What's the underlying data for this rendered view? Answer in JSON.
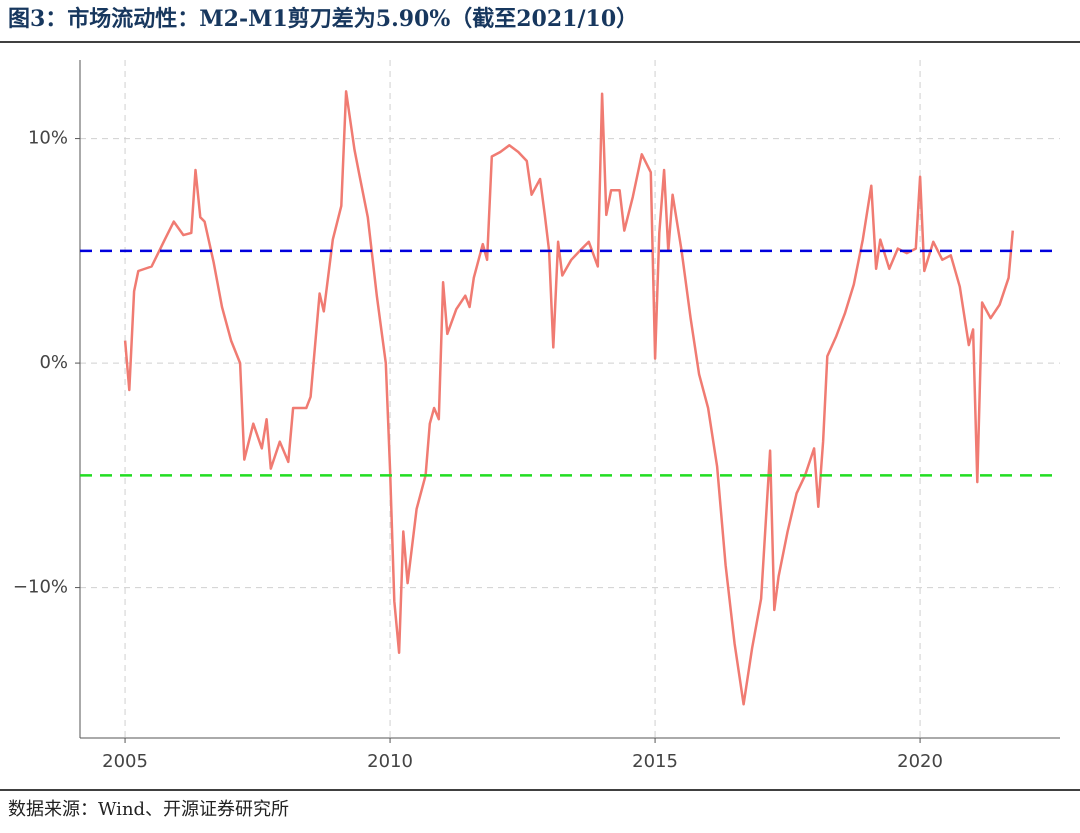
{
  "chart_data": {
    "type": "line",
    "title": "图3：市场流动性：M2-M1剪刀差为5.90%（截至2021/10）",
    "source": "数据来源：Wind、开源证券研究所",
    "xlim": [
      2004.15,
      2022.64
    ],
    "xticks": [
      2005,
      2010,
      2015,
      2020
    ],
    "ylim": [
      -16.7,
      13.5
    ],
    "yticks": [
      {
        "value": -10,
        "label": "−10%"
      },
      {
        "value": 0,
        "label": "0%"
      },
      {
        "value": 10,
        "label": "10%"
      }
    ],
    "grid": true,
    "hlines": [
      {
        "value": 5,
        "color": "#0000dd"
      },
      {
        "value": -5,
        "color": "#22dd22"
      }
    ],
    "series": [
      {
        "color": "#f07b72",
        "x": [
          2005.0,
          2005.08,
          2005.17,
          2005.25,
          2005.5,
          2005.75,
          2005.92,
          2006.1,
          2006.25,
          2006.33,
          2006.42,
          2006.5,
          2006.67,
          2006.83,
          2007.0,
          2007.17,
          2007.25,
          2007.42,
          2007.58,
          2007.67,
          2007.75,
          2007.92,
          2008.08,
          2008.17,
          2008.42,
          2008.5,
          2008.67,
          2008.75,
          2008.92,
          2009.08,
          2009.17,
          2009.33,
          2009.42,
          2009.58,
          2009.75,
          2009.92,
          2010.0,
          2010.08,
          2010.17,
          2010.25,
          2010.33,
          2010.5,
          2010.67,
          2010.75,
          2010.83,
          2010.92,
          2011.0,
          2011.08,
          2011.25,
          2011.42,
          2011.5,
          2011.58,
          2011.75,
          2011.83,
          2011.92,
          2012.08,
          2012.25,
          2012.42,
          2012.58,
          2012.67,
          2012.83,
          2012.92,
          2013.0,
          2013.08,
          2013.17,
          2013.25,
          2013.42,
          2013.58,
          2013.75,
          2013.92,
          2014.0,
          2014.08,
          2014.17,
          2014.33,
          2014.42,
          2014.58,
          2014.75,
          2014.92,
          2015.0,
          2015.08,
          2015.17,
          2015.25,
          2015.33,
          2015.5,
          2015.67,
          2015.83,
          2016.0,
          2016.17,
          2016.33,
          2016.5,
          2016.67,
          2016.83,
          2017.0,
          2017.17,
          2017.25,
          2017.33,
          2017.5,
          2017.67,
          2017.83,
          2018.0,
          2018.08,
          2018.17,
          2018.25,
          2018.42,
          2018.58,
          2018.75,
          2018.92,
          2019.08,
          2019.17,
          2019.25,
          2019.42,
          2019.58,
          2019.75,
          2019.92,
          2020.0,
          2020.08,
          2020.25,
          2020.42,
          2020.58,
          2020.75,
          2020.92,
          2021.0,
          2021.08,
          2021.17,
          2021.33,
          2021.5,
          2021.67,
          2021.75
        ],
        "values": [
          1.0,
          -1.2,
          3.2,
          4.1,
          4.3,
          5.5,
          6.3,
          5.7,
          5.8,
          8.6,
          6.5,
          6.3,
          4.5,
          2.5,
          1.0,
          0,
          -4.3,
          -2.7,
          -3.8,
          -2.5,
          -4.7,
          -3.5,
          -4.4,
          -2.0,
          -2.0,
          -1.5,
          3.1,
          2.3,
          5.5,
          7.0,
          12.1,
          9.5,
          8.4,
          6.5,
          3.0,
          0,
          -4.8,
          -10.6,
          -12.9,
          -7.5,
          -9.8,
          -6.5,
          -5.0,
          -2.7,
          -2.0,
          -2.5,
          3.6,
          1.3,
          2.4,
          3.0,
          2.5,
          3.8,
          5.3,
          4.6,
          9.2,
          9.4,
          9.7,
          9.4,
          9.0,
          7.5,
          8.2,
          6.6,
          5.0,
          0.7,
          5.4,
          3.9,
          4.6,
          5.0,
          5.4,
          4.3,
          12.0,
          6.6,
          7.7,
          7.7,
          5.9,
          7.4,
          9.3,
          8.5,
          0.2,
          5.8,
          8.6,
          5.0,
          7.5,
          5.0,
          2.0,
          -0.5,
          -2.0,
          -4.6,
          -9.0,
          -12.5,
          -15.2,
          -12.7,
          -10.5,
          -3.9,
          -11.0,
          -9.5,
          -7.5,
          -5.8,
          -5.0,
          -3.8,
          -6.4,
          -3.5,
          0.3,
          1.2,
          2.2,
          3.5,
          5.5,
          7.9,
          4.2,
          5.5,
          4.2,
          5.1,
          4.9,
          5.1,
          8.3,
          4.1,
          5.4,
          4.6,
          4.8,
          3.4,
          0.8,
          1.5,
          -5.3,
          2.7,
          2.0,
          2.6,
          3.8,
          5.9
        ]
      }
    ]
  }
}
